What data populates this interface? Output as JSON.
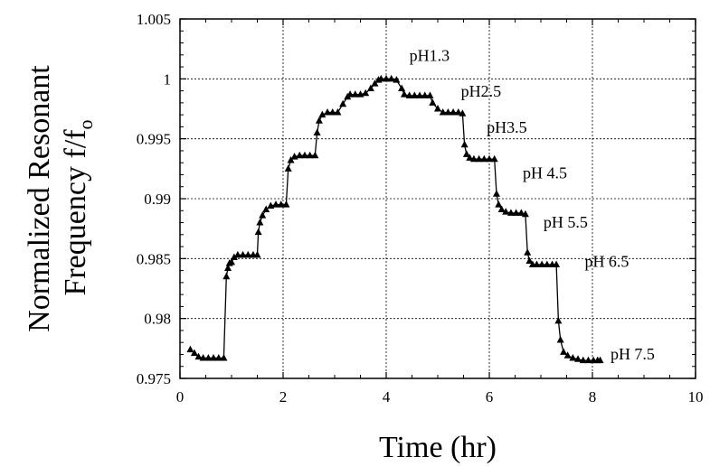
{
  "chart_data": {
    "type": "scatter",
    "title": "",
    "xlabel": "Time (hr)",
    "ylabel_line1": "Normalized Resonant",
    "ylabel_line2": "Frequency f/f",
    "ylabel_subscript": "o",
    "xlim": [
      0,
      10
    ],
    "ylim": [
      0.975,
      1.005
    ],
    "x_ticks": [
      {
        "value": 0,
        "label": "0"
      },
      {
        "value": 2,
        "label": "2"
      },
      {
        "value": 4,
        "label": "4"
      },
      {
        "value": 6,
        "label": "6"
      },
      {
        "value": 8,
        "label": "8"
      },
      {
        "value": 10,
        "label": "10"
      }
    ],
    "y_ticks": [
      {
        "value": 0.975,
        "label": "0.975"
      },
      {
        "value": 0.98,
        "label": "0.98"
      },
      {
        "value": 0.985,
        "label": "0.985"
      },
      {
        "value": 0.99,
        "label": "0.99"
      },
      {
        "value": 0.995,
        "label": "0.995"
      },
      {
        "value": 1.0,
        "label": "1"
      },
      {
        "value": 1.005,
        "label": "1.005"
      }
    ],
    "grid": true,
    "marker": "triangle",
    "marker_color": "#000000",
    "line_color": "#000000",
    "series": [
      {
        "x": [
          0.2,
          0.28,
          0.36,
          0.45,
          0.55,
          0.65,
          0.75,
          0.85,
          0.9,
          0.93,
          0.96,
          1.0,
          1.05,
          1.12,
          1.22,
          1.32,
          1.42,
          1.5,
          1.52,
          1.55,
          1.6,
          1.67,
          1.76,
          1.86,
          1.96,
          2.06,
          2.1,
          2.15,
          2.22,
          2.32,
          2.42,
          2.52,
          2.62,
          2.66,
          2.7,
          2.76,
          2.86,
          2.96,
          3.06,
          3.16,
          3.25,
          3.3,
          3.4,
          3.5,
          3.6,
          3.7,
          3.78,
          3.85,
          3.9,
          4.0,
          4.1,
          4.2,
          4.3,
          4.35,
          4.45,
          4.55,
          4.65,
          4.75,
          4.85,
          4.9,
          5.0,
          5.1,
          5.2,
          5.3,
          5.4,
          5.48,
          5.52,
          5.56,
          5.62,
          5.7,
          5.8,
          5.9,
          6.0,
          6.1,
          6.14,
          6.18,
          6.24,
          6.32,
          6.42,
          6.52,
          6.62,
          6.7,
          6.74,
          6.78,
          6.84,
          6.92,
          7.02,
          7.12,
          7.22,
          7.3,
          7.34,
          7.38,
          7.44,
          7.52,
          7.62,
          7.72,
          7.82,
          7.92,
          8.02,
          8.1,
          8.15
        ],
        "y": [
          0.9774,
          0.9771,
          0.9768,
          0.9767,
          0.9767,
          0.9767,
          0.9767,
          0.9767,
          0.9835,
          0.9842,
          0.9846,
          0.9847,
          0.9851,
          0.9853,
          0.9853,
          0.9853,
          0.9853,
          0.9853,
          0.9872,
          0.988,
          0.9886,
          0.9891,
          0.9894,
          0.9895,
          0.9895,
          0.9895,
          0.9925,
          0.9932,
          0.9935,
          0.9936,
          0.9936,
          0.9936,
          0.9936,
          0.9955,
          0.9965,
          0.997,
          0.9972,
          0.9972,
          0.9972,
          0.9979,
          0.9985,
          0.9987,
          0.9987,
          0.9987,
          0.9988,
          0.9992,
          0.9996,
          0.9999,
          1.0,
          1.0,
          1.0,
          0.9999,
          0.9992,
          0.9987,
          0.9986,
          0.9986,
          0.9986,
          0.9986,
          0.9986,
          0.998,
          0.9975,
          0.9972,
          0.9972,
          0.9972,
          0.9972,
          0.9971,
          0.9945,
          0.9937,
          0.9934,
          0.9933,
          0.9933,
          0.9933,
          0.9933,
          0.9933,
          0.9904,
          0.9895,
          0.9891,
          0.9889,
          0.9888,
          0.9888,
          0.9888,
          0.9887,
          0.9855,
          0.9848,
          0.9845,
          0.9845,
          0.9845,
          0.9845,
          0.9845,
          0.9845,
          0.9798,
          0.9782,
          0.9772,
          0.9769,
          0.9767,
          0.9766,
          0.9765,
          0.9765,
          0.9765,
          0.9765,
          0.9765
        ]
      }
    ],
    "annotations": [
      {
        "text": "pH1.3",
        "x": 4.45,
        "y": 1.0015
      },
      {
        "text": "pH2.5",
        "x": 5.45,
        "y": 0.9985
      },
      {
        "text": "pH3.5",
        "x": 5.95,
        "y": 0.9955
      },
      {
        "text": "pH 4.5",
        "x": 6.65,
        "y": 0.9917
      },
      {
        "text": "pH 5.5",
        "x": 7.05,
        "y": 0.9876
      },
      {
        "text": "pH 6.5",
        "x": 7.85,
        "y": 0.9843
      },
      {
        "text": "pH 7.5",
        "x": 8.35,
        "y": 0.9766
      }
    ]
  }
}
